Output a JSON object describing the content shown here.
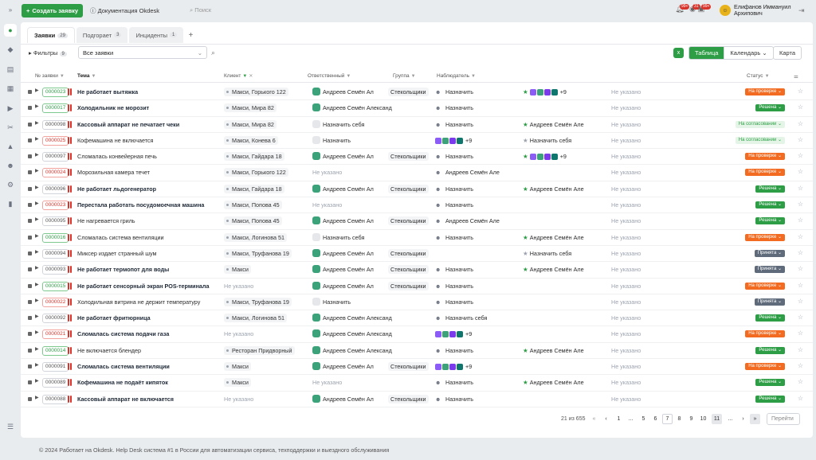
{
  "header": {
    "create_button": "Создать заявку",
    "docs_link": "Документация Okdesk",
    "search_label": "Поиск",
    "badges": [
      "99+",
      "31",
      "99+"
    ],
    "badge_colors": [
      "#d9342b",
      "#d9342b",
      "#d9342b"
    ],
    "user_name_1": "Елифанов Иммануил",
    "user_name_2": "Архипович",
    "expand_glyph": "»"
  },
  "tabs": [
    {
      "label": "Заявки",
      "count": "29"
    },
    {
      "label": "Подгорает",
      "count": "3"
    },
    {
      "label": "Инциденты",
      "count": "1"
    }
  ],
  "toolbar": {
    "filters_label": "Фильтры",
    "filters_count": "9",
    "select_value": "Все заявки",
    "views": [
      "Таблица",
      "Календарь",
      "Карта"
    ]
  },
  "columns": {
    "number": "№ заявки",
    "theme": "Тема",
    "client": "Клиент",
    "responsible": "Ответственный",
    "group": "Группа",
    "observer": "Наблюдатель",
    "status": "Статус"
  },
  "rows": [
    {
      "num": "0000023",
      "nc": "g",
      "theme": "Не работает вытяжка",
      "bold": true,
      "client": "Макси, Горького 122",
      "resp": "Андреев Семён Ал",
      "group": "Стекольщики",
      "obs": "Назначить",
      "watch": "+9",
      "dl": "Не указано",
      "status": "На проверке",
      "sc": "o"
    },
    {
      "num": "0000017",
      "nc": "g",
      "theme": "Холодильник не морозит",
      "bold": true,
      "client": "Макси, Мира 82",
      "resp": "Андреев Семён Александрович",
      "group": "",
      "obs": "Назначить",
      "watch": "",
      "dl": "Не указано",
      "status": "Решена",
      "sc": "g"
    },
    {
      "num": "0000098",
      "nc": "n",
      "theme": "Кассовый аппарат не печатает чеки",
      "bold": true,
      "client": "Макси, Мира 82",
      "resp": "Назначить себя",
      "group": "",
      "obs": "Назначить",
      "watch": "Андреев Семён Але",
      "dl": "Не указано",
      "status": "На согласовании",
      "sc": "a"
    },
    {
      "num": "0000025",
      "nc": "r",
      "theme": "Кофемашина не включается",
      "bold": false,
      "client": "Макси, Конева 6",
      "resp": "Назначить",
      "group": "",
      "obs": "+9",
      "watch": "Назначить себя",
      "dl": "Не указано",
      "status": "На согласовании",
      "sc": "a"
    },
    {
      "num": "0000097",
      "nc": "n",
      "theme": "Сломалась конвейерная печь",
      "bold": false,
      "client": "Макси, Гайдара 18",
      "resp": "Андреев Семён Ал",
      "group": "Стекольщики",
      "obs": "Назначить",
      "watch": "+9",
      "dl": "Не указано",
      "status": "На проверке",
      "sc": "o"
    },
    {
      "num": "0000024",
      "nc": "r",
      "theme": "Морозильная камера течет",
      "bold": false,
      "client": "Макси, Горького 122",
      "resp": "Не указано",
      "group": "",
      "obs": "Андреев Семён Але",
      "watch": "",
      "dl": "Не указано",
      "status": "На проверке",
      "sc": "o"
    },
    {
      "num": "0000096",
      "nc": "n",
      "theme": "Не работает льдогенератор",
      "bold": true,
      "client": "Макси, Гайдара 18",
      "resp": "Андреев Семён Ал",
      "group": "Стекольщики",
      "obs": "Назначить",
      "watch": "Андреев Семён Але",
      "dl": "Не указано",
      "status": "Решена",
      "sc": "g"
    },
    {
      "num": "0000023",
      "nc": "r",
      "theme": "Перестала работать посудомоечная машина",
      "bold": true,
      "client": "Макси, Попова 45",
      "resp": "Не указано",
      "group": "",
      "obs": "Назначить",
      "watch": "",
      "dl": "Не указано",
      "status": "Решена",
      "sc": "g"
    },
    {
      "num": "0000095",
      "nc": "n",
      "theme": "Не нагревается гриль",
      "bold": false,
      "client": "Макси, Попова 45",
      "resp": "Андреев Семён Ал",
      "group": "Стекольщики",
      "obs": "Андреев Семён Але",
      "watch": "",
      "dl": "Не указано",
      "status": "Решена",
      "sc": "g"
    },
    {
      "num": "0000016",
      "nc": "g",
      "theme": "Сломалась система вентиляции",
      "bold": false,
      "client": "Макси, Логинова 51",
      "resp": "Назначить себя",
      "group": "",
      "obs": "Назначить",
      "watch": "Андреев Семён Але",
      "dl": "Не указано",
      "status": "На проверке",
      "sc": "o"
    },
    {
      "num": "0000094",
      "nc": "n",
      "theme": "Миксер издает странный шум",
      "bold": false,
      "client": "Макси, Труфанова 19",
      "resp": "Андреев Семён Ал",
      "group": "Стекольщики",
      "obs": "",
      "watch": "Назначить себя",
      "dl": "Не указано",
      "status": "Принята",
      "sc": "n"
    },
    {
      "num": "0000093",
      "nc": "n",
      "theme": "Не работает термопот для воды",
      "bold": true,
      "client": "Макси",
      "resp": "Андреев Семён Ал",
      "group": "Стекольщики",
      "obs": "Назначить",
      "watch": "Андреев Семён Але",
      "dl": "Не указано",
      "status": "Принята",
      "sc": "n"
    },
    {
      "num": "0000015",
      "nc": "g",
      "theme": "Не работает сенсорный экран POS-терминала",
      "bold": true,
      "client": "Не указано",
      "resp": "Андреев Семён Ал",
      "group": "Стекольщики",
      "obs": "Назначить",
      "watch": "",
      "dl": "Не указано",
      "status": "На проверке",
      "sc": "o"
    },
    {
      "num": "0000022",
      "nc": "r",
      "theme": "Холодильная витрина не держит температуру",
      "bold": false,
      "client": "Макси, Труфанова 19",
      "resp": "Назначить",
      "group": "",
      "obs": "Назначить",
      "watch": "",
      "dl": "Не указано",
      "status": "Принята",
      "sc": "n"
    },
    {
      "num": "0000092",
      "nc": "n",
      "theme": "Не работает фритюрница",
      "bold": true,
      "client": "Макси, Логинова 51",
      "resp": "Андреев Семён Александрович",
      "group": "",
      "obs": "Назначить себя",
      "watch": "",
      "dl": "Не указано",
      "status": "Решена",
      "sc": "g"
    },
    {
      "num": "0000021",
      "nc": "r",
      "theme": "Сломалась система подачи газа",
      "bold": true,
      "client": "Не указано",
      "resp": "Андреев Семён Александрович",
      "group": "",
      "obs": "+9",
      "watch": "",
      "dl": "Не указано",
      "status": "На проверке",
      "sc": "o"
    },
    {
      "num": "0000014",
      "nc": "g",
      "theme": "Не включается блендер",
      "bold": false,
      "client": "Ресторан Придворный",
      "resp": "Андреев Семён Александрович",
      "group": "",
      "obs": "Назначить",
      "watch": "Андреев Семён Але",
      "dl": "Не указано",
      "status": "Решена",
      "sc": "g"
    },
    {
      "num": "0000091",
      "nc": "n",
      "theme": "Сломалась система вентиляции",
      "bold": true,
      "client": "Макси",
      "resp": "Андреев Семён Ал",
      "group": "Стекольщики",
      "obs": "+9",
      "watch": "",
      "dl": "Не указано",
      "status": "На проверке",
      "sc": "o"
    },
    {
      "num": "0000089",
      "nc": "n",
      "theme": "Кофемашина не подаёт кипяток",
      "bold": true,
      "client": "Макси",
      "resp": "Не указано",
      "group": "",
      "obs": "Назначить",
      "watch": "Андреев Семён Але",
      "dl": "Не указано",
      "status": "Решена",
      "sc": "g"
    },
    {
      "num": "0000088",
      "nc": "n",
      "theme": "Кассовый аппарат не включается",
      "bold": true,
      "client": "Не указано",
      "resp": "Андреев Семён Ал",
      "group": "Стекольщики",
      "obs": "Назначить",
      "watch": "",
      "dl": "Не указано",
      "status": "Решена",
      "sc": "g"
    }
  ],
  "pager": {
    "summary": "21 из 655",
    "pages": [
      "1",
      "...",
      "5",
      "6",
      "7",
      "8",
      "9",
      "10",
      "11",
      "..."
    ],
    "goto": "Перейти"
  },
  "footer": "© 2024 Работает на Okdesk. Help Desk система #1 в России для автоматизации сервиса, техподдержки и выездного обслуживания",
  "colors": {
    "brand_green": "#2e9e46",
    "status_orange": "#f26b21",
    "status_grey": "#5f6b7a"
  }
}
